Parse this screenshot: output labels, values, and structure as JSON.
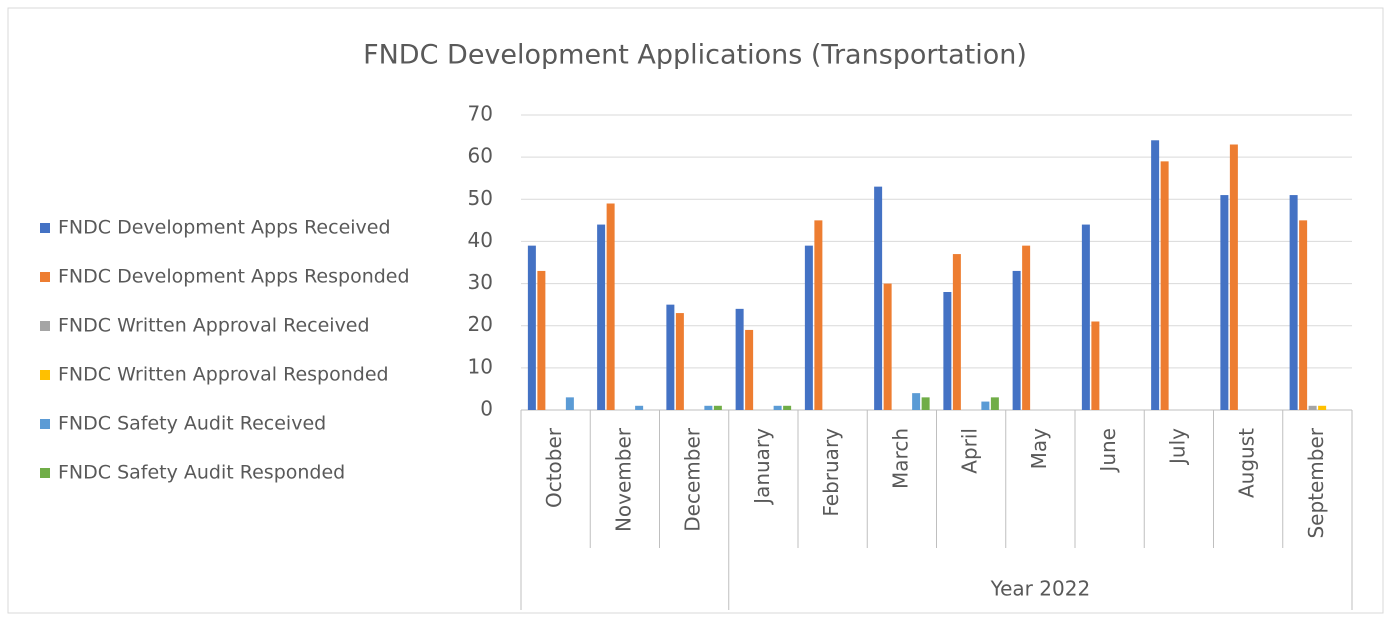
{
  "chart_data": {
    "type": "bar",
    "title": "FNDC Development Applications (Transportation)",
    "categories": [
      "October",
      "November",
      "December",
      "January",
      "February",
      "March",
      "April",
      "May",
      "June",
      "July",
      "August",
      "September"
    ],
    "category_groups": [
      {
        "label": null,
        "count": 3
      },
      {
        "label": "Year 2022",
        "count": 9
      }
    ],
    "series": [
      {
        "name": "FNDC Development Apps Received",
        "color": "#4472c4",
        "values": [
          39,
          44,
          25,
          24,
          39,
          53,
          28,
          33,
          44,
          64,
          51,
          51
        ]
      },
      {
        "name": "FNDC Development Apps Responded",
        "color": "#ed7d31",
        "values": [
          33,
          49,
          23,
          19,
          45,
          30,
          37,
          39,
          21,
          59,
          63,
          45
        ]
      },
      {
        "name": "FNDC Written Approval Received",
        "color": "#a5a5a5",
        "values": [
          0,
          0,
          0,
          0,
          0,
          0,
          0,
          0,
          0,
          0,
          0,
          1
        ]
      },
      {
        "name": "FNDC Written Approval Responded",
        "color": "#ffc000",
        "values": [
          0,
          0,
          0,
          0,
          0,
          0,
          0,
          0,
          0,
          0,
          0,
          1
        ]
      },
      {
        "name": "FNDC Safety Audit Received",
        "color": "#5b9bd5",
        "values": [
          3,
          1,
          1,
          1,
          0,
          4,
          2,
          0,
          0,
          0,
          0,
          0
        ]
      },
      {
        "name": "FNDC Safety Audit Responded",
        "color": "#70ad47",
        "values": [
          0,
          0,
          1,
          1,
          0,
          3,
          3,
          0,
          0,
          0,
          0,
          0
        ]
      }
    ],
    "ylim": [
      0,
      70
    ],
    "yticks": [
      0,
      10,
      20,
      30,
      40,
      50,
      60,
      70
    ],
    "grid": true,
    "legend": "left"
  }
}
